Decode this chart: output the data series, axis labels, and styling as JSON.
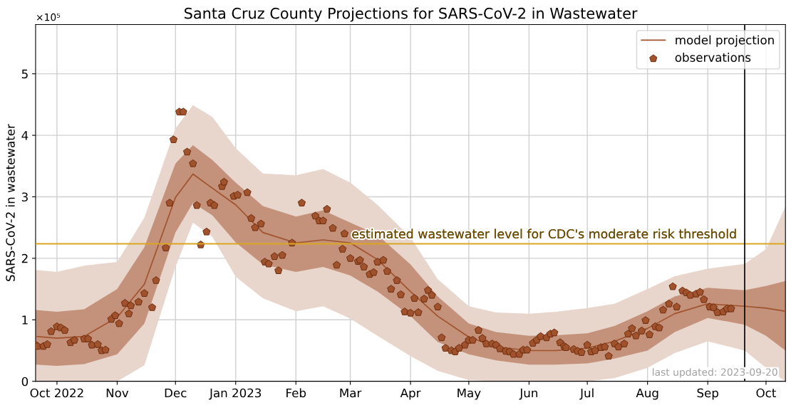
{
  "chart_data": {
    "type": "line",
    "title": "Santa Cruz County Projections for SARS-CoV-2 in Wastewater",
    "ylabel": "SARS-CoV-2 in wastewater",
    "x": [
      "2022-09-20",
      "2022-10-01",
      "2022-10-15",
      "2022-11-01",
      "2022-11-15",
      "2022-12-01",
      "2022-12-10",
      "2022-12-20",
      "2023-01-01",
      "2023-01-15",
      "2023-02-01",
      "2023-02-15",
      "2023-03-01",
      "2023-03-15",
      "2023-04-01",
      "2023-04-15",
      "2023-05-01",
      "2023-05-15",
      "2023-06-01",
      "2023-06-15",
      "2023-07-01",
      "2023-07-15",
      "2023-08-01",
      "2023-08-15",
      "2023-09-01",
      "2023-09-20",
      "2023-10-01",
      "2023-10-11"
    ],
    "series": [
      {
        "color": "#e8d5cb",
        "values": [
          null,
          null,
          null,
          null,
          null,
          null,
          null,
          null,
          null,
          null,
          null,
          null,
          null,
          null,
          null,
          null,
          null,
          null,
          null,
          null,
          null,
          null,
          null,
          null,
          null,
          null,
          null,
          null
        ],
        "lower": [
          0,
          0,
          0,
          0,
          0.26,
          1.86,
          2.58,
          2.35,
          1.7,
          1.35,
          1.14,
          1.22,
          1.02,
          0.74,
          0.41,
          0.17,
          0.02,
          0,
          0,
          0,
          0,
          0.05,
          0.22,
          0.46,
          0.65,
          0.5,
          0.22,
          0
        ],
        "upper": [
          1.81,
          1.78,
          1.88,
          1.94,
          2.66,
          4.11,
          4.49,
          4.3,
          3.79,
          3.38,
          3.35,
          3.45,
          3.23,
          2.87,
          2.34,
          1.66,
          1.22,
          1.12,
          1.1,
          1.13,
          1.19,
          1.26,
          1.5,
          1.71,
          1.83,
          1.91,
          2.15,
          2.84
        ]
      },
      {
        "color": "#c4917a",
        "values": [
          null,
          null,
          null,
          null,
          null,
          null,
          null,
          null,
          null,
          null,
          null,
          null,
          null,
          null,
          null,
          null,
          null,
          null,
          null,
          null,
          null,
          null,
          null,
          null,
          null,
          null,
          null,
          null
        ],
        "lower": [
          0.27,
          0.25,
          0.28,
          0.44,
          0.94,
          2.42,
          2.9,
          2.7,
          2.26,
          1.9,
          1.78,
          1.86,
          1.72,
          1.46,
          1.06,
          0.64,
          0.44,
          0.34,
          0.27,
          0.27,
          0.29,
          0.37,
          0.5,
          0.8,
          1.03,
          0.92,
          0.74,
          0.5
        ],
        "upper": [
          1.16,
          1.13,
          1.17,
          1.5,
          2.18,
          3.54,
          3.84,
          3.6,
          3.23,
          2.85,
          2.68,
          2.78,
          2.58,
          2.38,
          1.9,
          1.38,
          0.94,
          0.8,
          0.74,
          0.75,
          0.78,
          0.9,
          1.14,
          1.38,
          1.52,
          1.48,
          1.55,
          1.63
        ]
      },
      {
        "name": "model projection",
        "color": "#a0522d",
        "values": [
          0.73,
          0.7,
          0.73,
          1.04,
          1.58,
          2.99,
          3.37,
          3.14,
          2.87,
          2.42,
          2.25,
          2.3,
          2.25,
          1.98,
          1.46,
          1.06,
          0.72,
          0.56,
          0.5,
          0.5,
          0.54,
          0.65,
          0.86,
          1.1,
          1.26,
          1.22,
          1.19,
          1.14
        ]
      },
      {
        "type": "scatter",
        "name": "observations",
        "color": "#a0522d",
        "x": [
          "2022-09-20",
          "2022-09-21",
          "2022-09-24",
          "2022-09-26",
          "2022-09-28",
          "2022-10-01",
          "2022-10-03",
          "2022-10-05",
          "2022-10-08",
          "2022-10-10",
          "2022-10-15",
          "2022-10-17",
          "2022-10-19",
          "2022-10-22",
          "2022-10-24",
          "2022-10-26",
          "2022-10-29",
          "2022-10-31",
          "2022-11-02",
          "2022-11-05",
          "2022-11-07",
          "2022-11-08",
          "2022-11-12",
          "2022-11-15",
          "2022-11-19",
          "2022-11-21",
          "2022-11-26",
          "2022-11-28",
          "2022-11-30",
          "2022-12-03",
          "2022-12-05",
          "2022-12-07",
          "2022-12-10",
          "2022-12-12",
          "2022-12-14",
          "2022-12-17",
          "2022-12-19",
          "2022-12-21",
          "2022-12-25",
          "2022-12-26",
          "2022-12-31",
          "2023-01-02",
          "2023-01-07",
          "2023-01-09",
          "2023-01-11",
          "2023-01-14",
          "2023-01-16",
          "2023-01-18",
          "2023-01-21",
          "2023-01-23",
          "2023-01-25",
          "2023-01-30",
          "2023-02-04",
          "2023-02-11",
          "2023-02-13",
          "2023-02-15",
          "2023-02-17",
          "2023-02-20",
          "2023-02-22",
          "2023-02-25",
          "2023-02-26",
          "2023-03-01",
          "2023-03-05",
          "2023-03-06",
          "2023-03-08",
          "2023-03-11",
          "2023-03-13",
          "2023-03-15",
          "2023-03-18",
          "2023-03-20",
          "2023-03-22",
          "2023-03-25",
          "2023-03-27",
          "2023-03-29",
          "2023-04-01",
          "2023-04-03",
          "2023-04-05",
          "2023-04-08",
          "2023-04-10",
          "2023-04-12",
          "2023-04-15",
          "2023-04-17",
          "2023-04-19",
          "2023-04-22",
          "2023-04-24",
          "2023-04-26",
          "2023-04-29",
          "2023-05-01",
          "2023-05-03",
          "2023-05-06",
          "2023-05-08",
          "2023-05-10",
          "2023-05-13",
          "2023-05-15",
          "2023-05-17",
          "2023-05-20",
          "2023-05-22",
          "2023-05-24",
          "2023-05-27",
          "2023-05-29",
          "2023-05-31",
          "2023-06-03",
          "2023-06-05",
          "2023-06-07",
          "2023-06-10",
          "2023-06-12",
          "2023-06-14",
          "2023-06-17",
          "2023-06-19",
          "2023-06-20",
          "2023-06-24",
          "2023-06-26",
          "2023-06-28",
          "2023-07-01",
          "2023-07-03",
          "2023-07-05",
          "2023-07-08",
          "2023-07-10",
          "2023-07-12",
          "2023-07-15",
          "2023-07-17",
          "2023-07-20",
          "2023-07-22",
          "2023-07-24",
          "2023-07-26",
          "2023-07-29",
          "2023-07-31",
          "2023-08-02",
          "2023-08-05",
          "2023-08-07",
          "2023-08-09",
          "2023-08-12",
          "2023-08-14",
          "2023-08-16",
          "2023-08-19",
          "2023-08-21",
          "2023-08-23",
          "2023-08-26",
          "2023-08-28",
          "2023-08-30",
          "2023-09-02",
          "2023-09-04",
          "2023-09-06",
          "2023-09-09",
          "2023-09-11",
          "2023-09-13"
        ],
        "values": [
          0.59,
          0.57,
          0.57,
          0.6,
          0.81,
          0.89,
          0.87,
          0.83,
          0.63,
          0.67,
          0.69,
          0.69,
          0.59,
          0.6,
          0.5,
          0.51,
          1.01,
          1.07,
          0.94,
          1.27,
          1.1,
          1.23,
          1.29,
          1.43,
          1.2,
          1.64,
          2.17,
          2.9,
          3.93,
          4.38,
          4.38,
          3.73,
          3.54,
          2.86,
          2.22,
          2.43,
          2.9,
          2.86,
          3.17,
          3.24,
          3.01,
          3.03,
          3.07,
          2.65,
          2.5,
          2.56,
          1.94,
          1.91,
          2.03,
          1.8,
          2.05,
          2.25,
          2.9,
          2.69,
          2.61,
          2.61,
          2.8,
          2.49,
          1.89,
          2.15,
          2.4,
          2.0,
          1.95,
          1.97,
          1.86,
          1.74,
          1.77,
          1.94,
          1.97,
          1.79,
          1.5,
          1.64,
          1.41,
          1.13,
          1.11,
          1.35,
          1.12,
          1.34,
          1.48,
          1.4,
          1.21,
          0.71,
          0.54,
          0.5,
          0.48,
          0.54,
          0.59,
          0.67,
          0.67,
          0.83,
          0.7,
          0.61,
          0.61,
          0.59,
          0.53,
          0.49,
          0.48,
          0.44,
          0.44,
          0.51,
          0.51,
          0.62,
          0.67,
          0.73,
          0.71,
          0.77,
          0.79,
          0.63,
          0.57,
          0.55,
          0.52,
          0.49,
          0.47,
          0.59,
          0.48,
          0.5,
          0.55,
          0.56,
          0.41,
          0.61,
          0.56,
          0.61,
          0.77,
          0.86,
          0.74,
          0.82,
          0.99,
          0.76,
          0.89,
          0.87,
          1.16,
          1.26,
          1.54,
          1.21,
          1.47,
          1.44,
          1.4,
          1.42,
          1.45,
          1.33,
          1.21,
          1.2,
          1.12,
          1.13,
          1.18,
          1.18
        ]
      }
    ],
    "xlim": [
      "2022-09-20",
      "2023-10-11"
    ],
    "xticks": [
      {
        "value": "2022-10-01",
        "label": "Oct 2022"
      },
      {
        "value": "2022-11-01",
        "label": "Nov"
      },
      {
        "value": "2022-12-01",
        "label": "Dec"
      },
      {
        "value": "2023-01-01",
        "label": "Jan 2023"
      },
      {
        "value": "2023-02-01",
        "label": "Feb"
      },
      {
        "value": "2023-03-01",
        "label": "Mar"
      },
      {
        "value": "2023-04-01",
        "label": "Apr"
      },
      {
        "value": "2023-05-01",
        "label": "May"
      },
      {
        "value": "2023-06-01",
        "label": "Jun"
      },
      {
        "value": "2023-07-01",
        "label": "Jul"
      },
      {
        "value": "2023-08-01",
        "label": "Aug"
      },
      {
        "value": "2023-09-01",
        "label": "Sep"
      },
      {
        "value": "2023-10-01",
        "label": "Oct"
      }
    ],
    "ylim": [
      0,
      5.8
    ],
    "yticks": [
      0,
      1,
      2,
      3,
      4,
      5
    ],
    "ref_lines": [
      {
        "axis": "y",
        "value": 2.235,
        "label": "estimated wastewater level for CDC's moderate risk threshold",
        "color": "#daa520"
      },
      {
        "axis": "x",
        "value": "2023-09-20",
        "color": "#000000"
      }
    ],
    "annotations": [
      "×10⁵",
      "last updated: 2023-09-20"
    ],
    "grid": true,
    "legend": "top right"
  }
}
